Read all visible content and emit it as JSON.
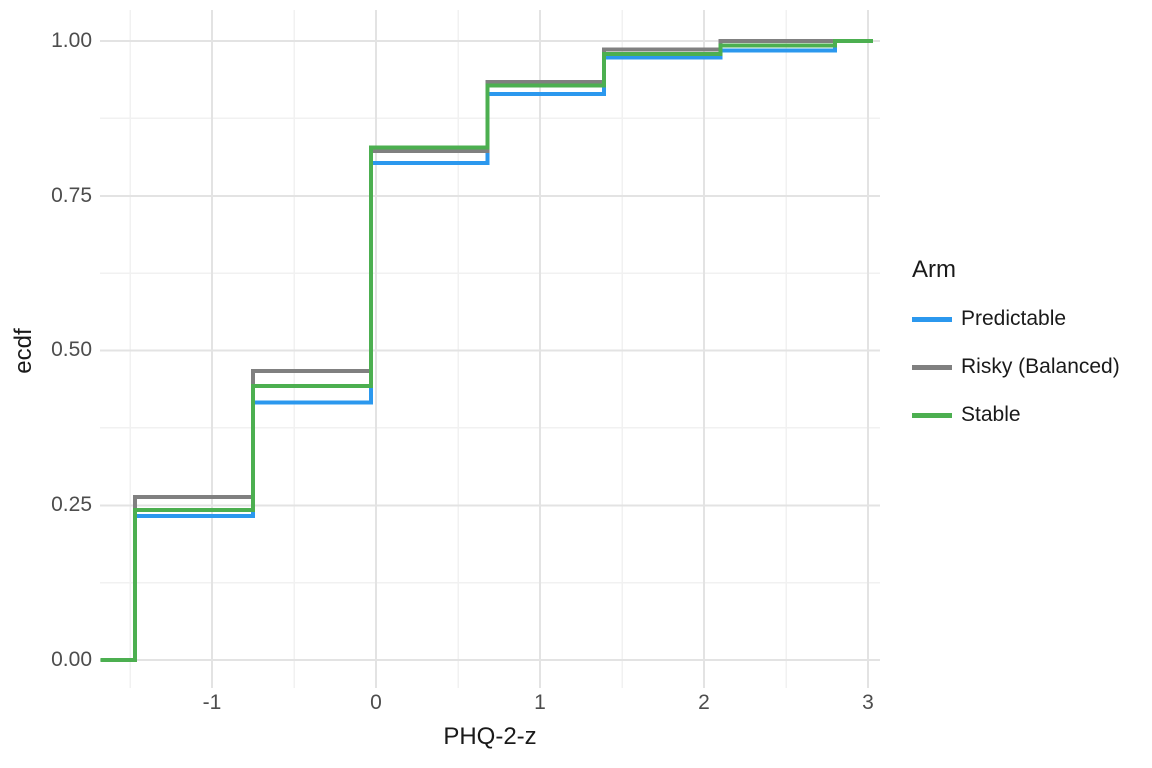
{
  "figure": {
    "background": "#FFFFFF",
    "tick_text_color": "#4D4D4D",
    "title_text_color": "#1A1A1A",
    "grid_major_color": "#E3E3E3",
    "grid_minor_color": "#F1F1F1"
  },
  "chart_data": {
    "type": "line",
    "subtype": "ecdf_step",
    "title": "",
    "xlabel": "PHQ-2-z",
    "ylabel": "ecdf",
    "grid": true,
    "legend_position": "right",
    "legend_title": "Arm",
    "xlim": [
      -1.68,
      3.07
    ],
    "ylim": [
      -0.05,
      1.05
    ],
    "x_tick_labels": [
      "-1",
      "0",
      "1",
      "2",
      "3"
    ],
    "x_tick_values": [
      -1,
      0,
      1,
      2,
      3
    ],
    "x_minor_tick_values": [
      -1.5,
      -0.5,
      0.5,
      1.5,
      2.5
    ],
    "y_tick_labels": [
      "0.00",
      "0.25",
      "0.50",
      "0.75",
      "1.00"
    ],
    "y_tick_values": [
      0,
      0.25,
      0.5,
      0.75,
      1
    ],
    "y_minor_tick_values": [
      0.125,
      0.375,
      0.625,
      0.875
    ],
    "x_start": -1.68,
    "x_end": 3.03,
    "step_x": [
      -1.47,
      -0.75,
      -0.03,
      0.68,
      1.39,
      2.1,
      2.8
    ],
    "series": [
      {
        "name": "Predictable",
        "color": "#2B98EE",
        "values": [
          0.233,
          0.416,
          0.803,
          0.914,
          0.973,
          0.985,
          1.0
        ]
      },
      {
        "name": "Risky (Balanced)",
        "color": "#808080",
        "values": [
          0.263,
          0.467,
          0.822,
          0.934,
          0.986,
          1.0,
          1.0
        ]
      },
      {
        "name": "Stable",
        "color": "#4CAF50",
        "values": [
          0.242,
          0.443,
          0.828,
          0.928,
          0.979,
          0.993,
          1.0
        ]
      }
    ]
  }
}
